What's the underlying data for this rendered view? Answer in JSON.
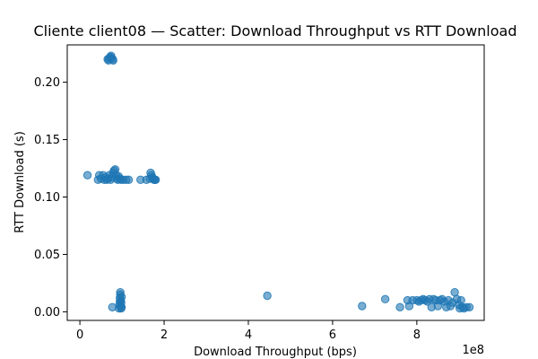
{
  "chart_data": {
    "type": "scatter",
    "title": "Cliente client08 — Scatter: Download Throughput vs RTT Download",
    "xlabel": "Download Throughput (bps)",
    "ylabel": "RTT Download (s)",
    "x_offset_label": "1e8",
    "xlim": [
      -0.3,
      9.6
    ],
    "ylim": [
      -0.0075,
      0.2325
    ],
    "x_scale_note": "x values are in units of 1e8 bps, as shown by the axis offset label",
    "x_ticks": [
      {
        "value": 0,
        "label": "0"
      },
      {
        "value": 2,
        "label": "2"
      },
      {
        "value": 4,
        "label": "4"
      },
      {
        "value": 6,
        "label": "6"
      },
      {
        "value": 8,
        "label": "8"
      }
    ],
    "y_ticks": [
      {
        "value": 0.0,
        "label": "0.00"
      },
      {
        "value": 0.05,
        "label": "0.05"
      },
      {
        "value": 0.1,
        "label": "0.10"
      },
      {
        "value": 0.15,
        "label": "0.15"
      },
      {
        "value": 0.2,
        "label": "0.20"
      }
    ],
    "grid": false,
    "point_color": "#1f77b4",
    "point_alpha": 0.6,
    "series": [
      {
        "points": [
          {
            "x": 0.66,
            "y": 0.22
          },
          {
            "x": 0.7,
            "y": 0.221
          },
          {
            "x": 0.72,
            "y": 0.222
          },
          {
            "x": 0.75,
            "y": 0.221
          },
          {
            "x": 0.78,
            "y": 0.22
          },
          {
            "x": 0.68,
            "y": 0.219
          },
          {
            "x": 0.74,
            "y": 0.223
          },
          {
            "x": 0.79,
            "y": 0.219
          },
          {
            "x": 0.18,
            "y": 0.119
          },
          {
            "x": 0.43,
            "y": 0.115
          },
          {
            "x": 0.46,
            "y": 0.119
          },
          {
            "x": 0.5,
            "y": 0.116
          },
          {
            "x": 0.55,
            "y": 0.119
          },
          {
            "x": 0.58,
            "y": 0.115
          },
          {
            "x": 0.61,
            "y": 0.117
          },
          {
            "x": 0.64,
            "y": 0.115
          },
          {
            "x": 0.67,
            "y": 0.116
          },
          {
            "x": 0.7,
            "y": 0.119
          },
          {
            "x": 0.73,
            "y": 0.115
          },
          {
            "x": 0.76,
            "y": 0.117
          },
          {
            "x": 0.79,
            "y": 0.121
          },
          {
            "x": 0.81,
            "y": 0.123
          },
          {
            "x": 0.84,
            "y": 0.124
          },
          {
            "x": 0.86,
            "y": 0.119
          },
          {
            "x": 0.88,
            "y": 0.116
          },
          {
            "x": 0.9,
            "y": 0.115
          },
          {
            "x": 0.92,
            "y": 0.118
          },
          {
            "x": 0.95,
            "y": 0.116
          },
          {
            "x": 0.98,
            "y": 0.115
          },
          {
            "x": 1.03,
            "y": 0.115
          },
          {
            "x": 1.1,
            "y": 0.115
          },
          {
            "x": 1.16,
            "y": 0.115
          },
          {
            "x": 1.44,
            "y": 0.115
          },
          {
            "x": 1.58,
            "y": 0.115
          },
          {
            "x": 1.66,
            "y": 0.116
          },
          {
            "x": 1.68,
            "y": 0.121
          },
          {
            "x": 1.7,
            "y": 0.119
          },
          {
            "x": 1.72,
            "y": 0.117
          },
          {
            "x": 1.74,
            "y": 0.116
          },
          {
            "x": 1.76,
            "y": 0.115
          },
          {
            "x": 1.78,
            "y": 0.115
          },
          {
            "x": 1.8,
            "y": 0.115
          },
          {
            "x": 0.77,
            "y": 0.004
          },
          {
            "x": 0.93,
            "y": 0.003
          },
          {
            "x": 0.94,
            "y": 0.006
          },
          {
            "x": 0.95,
            "y": 0.009
          },
          {
            "x": 0.95,
            "y": 0.012
          },
          {
            "x": 0.96,
            "y": 0.015
          },
          {
            "x": 0.96,
            "y": 0.017
          },
          {
            "x": 0.97,
            "y": 0.005
          },
          {
            "x": 0.97,
            "y": 0.01
          },
          {
            "x": 0.98,
            "y": 0.003
          },
          {
            "x": 0.98,
            "y": 0.008
          },
          {
            "x": 0.99,
            "y": 0.013
          },
          {
            "x": 0.99,
            "y": 0.004
          },
          {
            "x": 4.45,
            "y": 0.014
          },
          {
            "x": 6.7,
            "y": 0.005
          },
          {
            "x": 7.25,
            "y": 0.011
          },
          {
            "x": 7.6,
            "y": 0.004
          },
          {
            "x": 7.78,
            "y": 0.01
          },
          {
            "x": 7.82,
            "y": 0.005
          },
          {
            "x": 7.9,
            "y": 0.01
          },
          {
            "x": 8.0,
            "y": 0.01
          },
          {
            "x": 8.05,
            "y": 0.009
          },
          {
            "x": 8.1,
            "y": 0.01
          },
          {
            "x": 8.15,
            "y": 0.011
          },
          {
            "x": 8.2,
            "y": 0.01
          },
          {
            "x": 8.25,
            "y": 0.009
          },
          {
            "x": 8.3,
            "y": 0.011
          },
          {
            "x": 8.35,
            "y": 0.004
          },
          {
            "x": 8.4,
            "y": 0.011
          },
          {
            "x": 8.45,
            "y": 0.01
          },
          {
            "x": 8.5,
            "y": 0.005
          },
          {
            "x": 8.55,
            "y": 0.01
          },
          {
            "x": 8.6,
            "y": 0.011
          },
          {
            "x": 8.65,
            "y": 0.009
          },
          {
            "x": 8.7,
            "y": 0.004
          },
          {
            "x": 8.75,
            "y": 0.01
          },
          {
            "x": 8.8,
            "y": 0.005
          },
          {
            "x": 8.85,
            "y": 0.008
          },
          {
            "x": 8.9,
            "y": 0.017
          },
          {
            "x": 8.95,
            "y": 0.011
          },
          {
            "x": 9.0,
            "y": 0.006
          },
          {
            "x": 9.02,
            "y": 0.003
          },
          {
            "x": 9.05,
            "y": 0.01
          },
          {
            "x": 9.08,
            "y": 0.004
          },
          {
            "x": 9.12,
            "y": 0.003
          },
          {
            "x": 9.18,
            "y": 0.004
          },
          {
            "x": 9.25,
            "y": 0.004
          }
        ]
      }
    ]
  }
}
